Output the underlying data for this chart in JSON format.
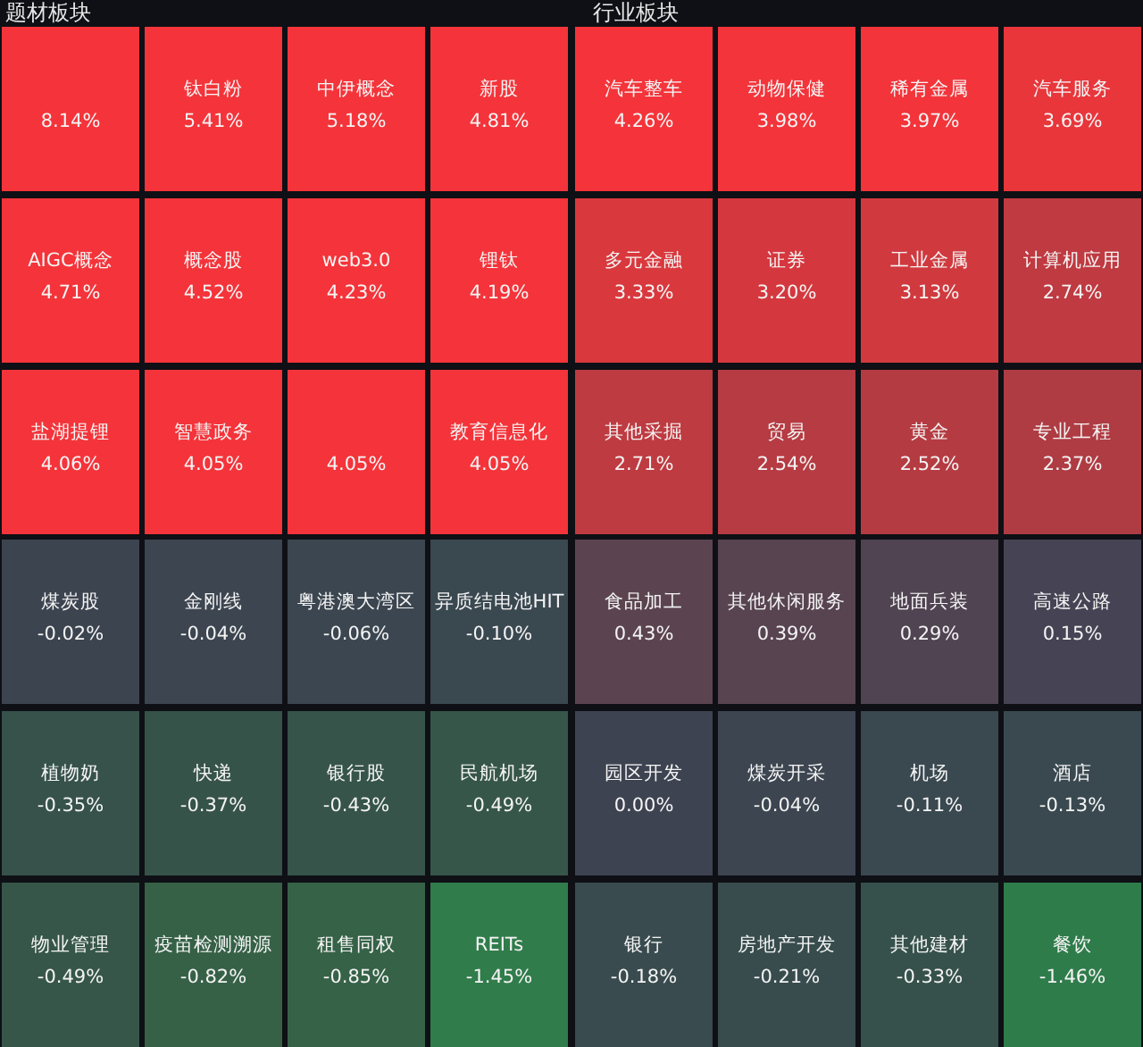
{
  "chart_data": [
    {
      "type": "other",
      "title": "题材板块",
      "categories": [
        null,
        "钛白粉",
        "中伊概念",
        "新股",
        "AIGC概念",
        "概念股",
        "web3.0",
        "锂钛",
        "盐湖提锂",
        "智慧政务",
        null,
        "教育信息化",
        "煤炭股",
        "金刚线",
        "粤港澳大湾区",
        "异质结电池HIT",
        "植物奶",
        "快递",
        "银行股",
        "民航机场",
        "物业管理",
        "疫苗检测溯源",
        "租售同权",
        "REITs"
      ],
      "values": [
        8.14,
        5.41,
        5.18,
        4.81,
        4.71,
        4.52,
        4.23,
        4.19,
        4.06,
        4.05,
        4.05,
        4.05,
        -0.02,
        -0.04,
        -0.06,
        -0.1,
        -0.35,
        -0.37,
        -0.43,
        -0.49,
        -0.49,
        -0.82,
        -0.85,
        -1.45
      ],
      "value_labels": [
        "8.14%",
        "5.41%",
        "5.18%",
        "4.81%",
        "4.71%",
        "4.52%",
        "4.23%",
        "4.19%",
        "4.06%",
        "4.05%",
        "4.05%",
        "4.05%",
        "-0.02%",
        "-0.04%",
        "-0.06%",
        "-0.10%",
        "-0.35%",
        "-0.37%",
        "-0.43%",
        "-0.49%",
        "-0.49%",
        "-0.82%",
        "-0.85%",
        "-1.45%"
      ]
    },
    {
      "type": "other",
      "title": "行业板块",
      "categories": [
        "汽车整车",
        "动物保健",
        "稀有金属",
        "汽车服务",
        "多元金融",
        "证券",
        "工业金属",
        "计算机应用",
        "其他采掘",
        "贸易",
        "黄金",
        "专业工程",
        "食品加工",
        "其他休闲服务",
        "地面兵装",
        "高速公路",
        "园区开发",
        "煤炭开采",
        "机场",
        "酒店",
        "银行",
        "房地产开发",
        "其他建材",
        "餐饮"
      ],
      "values": [
        4.26,
        3.98,
        3.97,
        3.69,
        3.33,
        3.2,
        3.13,
        2.74,
        2.71,
        2.54,
        2.52,
        2.37,
        0.43,
        0.39,
        0.29,
        0.15,
        0.0,
        -0.04,
        -0.11,
        -0.13,
        -0.18,
        -0.21,
        -0.33,
        -1.46
      ],
      "value_labels": [
        "4.26%",
        "3.98%",
        "3.97%",
        "3.69%",
        "3.33%",
        "3.20%",
        "3.13%",
        "2.74%",
        "2.71%",
        "2.54%",
        "2.52%",
        "2.37%",
        "0.43%",
        "0.39%",
        "0.29%",
        "0.15%",
        "0.00%",
        "-0.04%",
        "-0.11%",
        "-0.13%",
        "-0.18%",
        "-0.21%",
        "-0.33%",
        "-1.46%"
      ]
    }
  ]
}
